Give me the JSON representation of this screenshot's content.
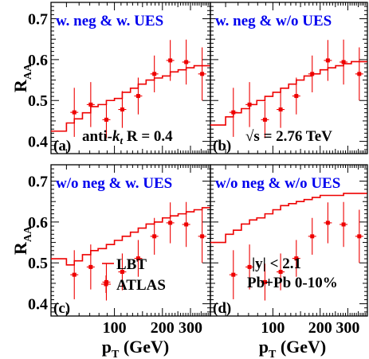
{
  "chart_data": {
    "type": "line",
    "ylabel": "R",
    "ylabel_sub": "AA",
    "xlabel": "p",
    "xlabel_sub": "T",
    "xlabel_unit": "(GeV)",
    "xlim": [
      40,
      400
    ],
    "ylim": [
      0.37,
      0.74
    ],
    "x_ticks": [
      100,
      200,
      300
    ],
    "y_ticks": [
      0.4,
      0.5,
      0.6,
      0.7
    ],
    "colors": {
      "lbt": "#ee0000",
      "atlas": "#ee0000",
      "title": "#0000ee"
    },
    "lbt_bin_edges": [
      40,
      50,
      56,
      63,
      71,
      79,
      89,
      100,
      112,
      126,
      141,
      158,
      178,
      200,
      224,
      251,
      282,
      316,
      355,
      398
    ],
    "atlas": {
      "x": [
        56,
        71,
        89,
        112,
        141,
        178,
        224,
        282,
        355
      ],
      "y": [
        0.471,
        0.49,
        0.453,
        0.478,
        0.511,
        0.565,
        0.598,
        0.594,
        0.565
      ],
      "err": [
        0.06,
        0.055,
        0.045,
        0.045,
        0.045,
        0.045,
        0.05,
        0.055,
        0.065
      ]
    },
    "legend": {
      "lbt": "LBT",
      "atlas": "ATLAS"
    },
    "panels": [
      {
        "letter": "(a)",
        "title": "w. neg & w. UES",
        "annotation_prefix": "anti-",
        "annotation_k": "k",
        "annotation_t": "t",
        "annotation_rest": " R = 0.4",
        "lbt": [
          0.425,
          0.445,
          0.455,
          0.47,
          0.485,
          0.49,
          0.5,
          0.505,
          0.52,
          0.53,
          0.54,
          0.55,
          0.555,
          0.56,
          0.57,
          0.575,
          0.58,
          0.585,
          0.585
        ]
      },
      {
        "letter": "(b)",
        "title": "w. neg & w/o UES",
        "annotation": "√s = 2.76 TeV",
        "lbt": [
          0.44,
          0.46,
          0.47,
          0.48,
          0.49,
          0.5,
          0.51,
          0.52,
          0.53,
          0.54,
          0.55,
          0.56,
          0.565,
          0.575,
          0.58,
          0.585,
          0.59,
          0.595,
          0.595
        ]
      },
      {
        "letter": "(c)",
        "title": "w/o neg & w. UES",
        "lbt": [
          0.51,
          0.495,
          0.505,
          0.52,
          0.53,
          0.535,
          0.545,
          0.555,
          0.565,
          0.575,
          0.585,
          0.595,
          0.6,
          0.61,
          0.615,
          0.62,
          0.625,
          0.63,
          0.635
        ]
      },
      {
        "letter": "(d)",
        "title": "w/o neg & w/o UES",
        "annotation_line1": "|y| < 2.1",
        "annotation_line2": "Pb+Pb 0-10%",
        "lbt": [
          0.55,
          0.57,
          0.58,
          0.595,
          0.605,
          0.61,
          0.62,
          0.63,
          0.64,
          0.645,
          0.65,
          0.655,
          0.66,
          0.665,
          0.665,
          0.665,
          0.67,
          0.67,
          0.67
        ]
      }
    ]
  }
}
